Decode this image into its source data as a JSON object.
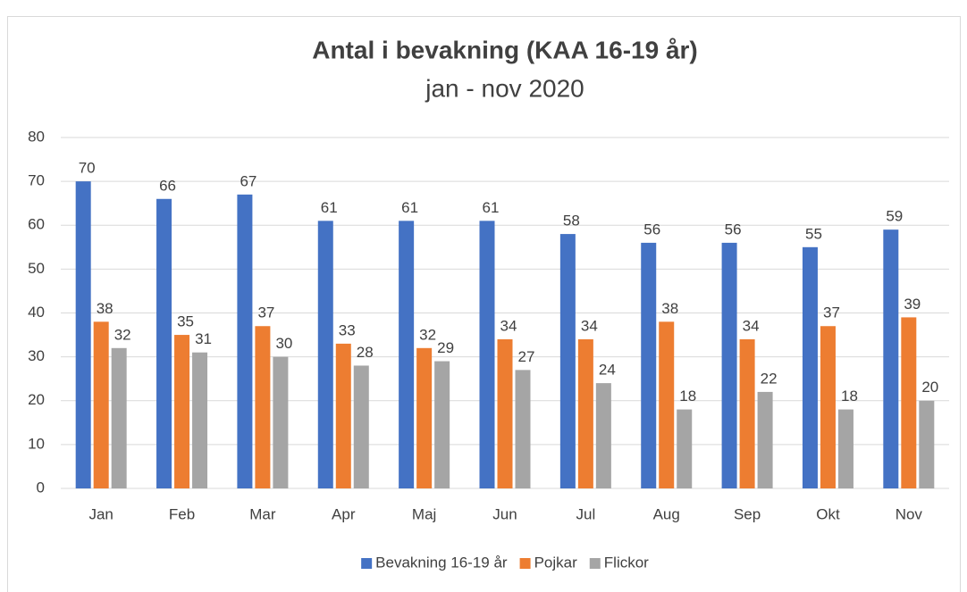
{
  "chart_data": {
    "type": "bar",
    "title": "Antal i bevakning (KAA 16-19 år)",
    "subtitle": "jan - nov 2020",
    "categories": [
      "Jan",
      "Feb",
      "Mar",
      "Apr",
      "Maj",
      "Jun",
      "Jul",
      "Aug",
      "Sep",
      "Okt",
      "Nov"
    ],
    "series": [
      {
        "name": "Bevakning 16-19 år",
        "color": "#4472c4",
        "values": [
          70,
          66,
          67,
          61,
          61,
          61,
          58,
          56,
          56,
          55,
          59
        ]
      },
      {
        "name": "Pojkar",
        "color": "#ed7d31",
        "values": [
          38,
          35,
          37,
          33,
          32,
          34,
          34,
          38,
          34,
          37,
          39
        ]
      },
      {
        "name": "Flickor",
        "color": "#a5a5a5",
        "values": [
          32,
          31,
          30,
          28,
          29,
          27,
          24,
          18,
          22,
          18,
          20
        ]
      }
    ],
    "ylim": [
      0,
      80
    ],
    "yticks": [
      0,
      10,
      20,
      30,
      40,
      50,
      60,
      70,
      80
    ],
    "grid": true,
    "legend": "bottom",
    "data_labels": true
  }
}
